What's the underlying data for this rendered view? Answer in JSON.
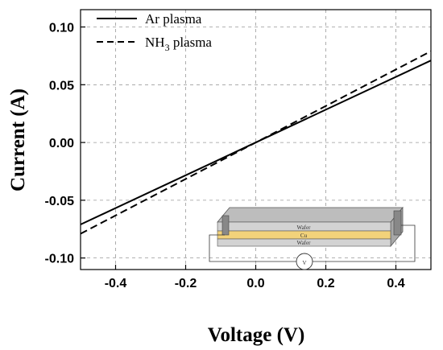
{
  "chart_data": {
    "type": "line",
    "xlabel": "Voltage (V)",
    "ylabel": "Current (A)",
    "xlim": [
      -0.5,
      0.5
    ],
    "ylim": [
      -0.11,
      0.115
    ],
    "xticks": [
      -0.4,
      -0.2,
      0.0,
      0.2,
      0.4
    ],
    "xtick_labels": [
      "-0.4",
      "-0.2",
      "0.0",
      "0.2",
      "0.4"
    ],
    "yticks": [
      -0.1,
      -0.05,
      0.0,
      0.05,
      0.1
    ],
    "ytick_labels": [
      "-0.10",
      "-0.05",
      "0.00",
      "0.05",
      "0.10"
    ],
    "grid": true,
    "legend_position": "top-left",
    "series": [
      {
        "name": "Ar plasma",
        "style": "solid",
        "x": [
          -0.5,
          -0.25,
          0.0,
          0.25,
          0.5
        ],
        "y": [
          -0.071,
          -0.0355,
          0.0,
          0.0355,
          0.071
        ]
      },
      {
        "name": "NH3 plasma",
        "name_base": "NH",
        "name_sub": "3",
        "name_rest": " plasma",
        "style": "dashed",
        "x": [
          -0.5,
          -0.25,
          0.0,
          0.25,
          0.5
        ],
        "y": [
          -0.079,
          -0.0395,
          0.0,
          0.0395,
          0.079
        ]
      }
    ],
    "inset": {
      "layers": [
        {
          "label": "Wafer",
          "color": "#d3d3d3"
        },
        {
          "label": "Cu",
          "color": "#f2d27a"
        },
        {
          "label": "Wafer",
          "color": "#d3d3d3"
        }
      ],
      "meter_label": "V"
    }
  }
}
